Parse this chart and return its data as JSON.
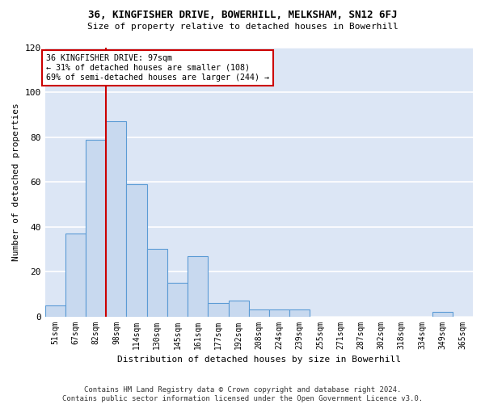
{
  "title1": "36, KINGFISHER DRIVE, BOWERHILL, MELKSHAM, SN12 6FJ",
  "title2": "Size of property relative to detached houses in Bowerhill",
  "xlabel": "Distribution of detached houses by size in Bowerhill",
  "ylabel": "Number of detached properties",
  "bin_labels": [
    "51sqm",
    "67sqm",
    "82sqm",
    "98sqm",
    "114sqm",
    "130sqm",
    "145sqm",
    "161sqm",
    "177sqm",
    "192sqm",
    "208sqm",
    "224sqm",
    "239sqm",
    "255sqm",
    "271sqm",
    "287sqm",
    "302sqm",
    "318sqm",
    "334sqm",
    "349sqm",
    "365sqm"
  ],
  "bar_heights": [
    5,
    37,
    79,
    87,
    59,
    30,
    15,
    27,
    6,
    7,
    3,
    3,
    3,
    0,
    0,
    0,
    0,
    0,
    0,
    2,
    0
  ],
  "bar_color": "#c8d9ef",
  "bar_edge_color": "#5b9bd5",
  "vline_color": "#cc0000",
  "vline_x": 2.5,
  "annotation_text": "36 KINGFISHER DRIVE: 97sqm\n← 31% of detached houses are smaller (108)\n69% of semi-detached houses are larger (244) →",
  "annotation_box_color": "#ffffff",
  "annotation_box_edge": "#cc0000",
  "ylim": [
    0,
    120
  ],
  "yticks": [
    0,
    20,
    40,
    60,
    80,
    100,
    120
  ],
  "footer": "Contains HM Land Registry data © Crown copyright and database right 2024.\nContains public sector information licensed under the Open Government Licence v3.0.",
  "fig_bg_color": "#ffffff",
  "plot_bg_color": "#dce6f5",
  "grid_color": "#ffffff",
  "title_fontsize": 9,
  "subtitle_fontsize": 8,
  "footer_fontsize": 6.5
}
